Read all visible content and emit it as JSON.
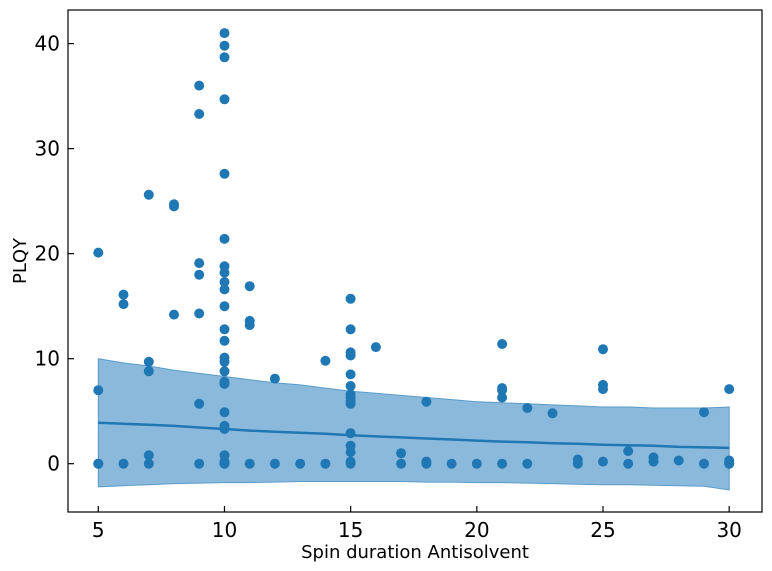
{
  "chart_data": {
    "type": "scatter",
    "title": "",
    "xlabel": "Spin duration Antisolvent",
    "ylabel": "PLQY",
    "xlim": [
      3.8,
      31.3
    ],
    "ylim": [
      -4.6,
      43.2
    ],
    "xticks": [
      5,
      10,
      15,
      20,
      25,
      30
    ],
    "yticks": [
      0,
      10,
      20,
      30,
      40
    ],
    "grid": false,
    "legend": "none",
    "colors": {
      "points": "#1f77b4",
      "fit_line": "#1f77b4",
      "band_fill": "#8bb9dc",
      "band_edge": "#5b9bc9"
    },
    "series": [
      {
        "type": "scatter",
        "points": [
          [
            5,
            20.1
          ],
          [
            5,
            7.0
          ],
          [
            5,
            0.0
          ],
          [
            5,
            0.0
          ],
          [
            6,
            16.1
          ],
          [
            6,
            15.2
          ],
          [
            6,
            0.0
          ],
          [
            7,
            25.6
          ],
          [
            7,
            9.7
          ],
          [
            7,
            8.8
          ],
          [
            7,
            0.8
          ],
          [
            7,
            0.0
          ],
          [
            8,
            24.7
          ],
          [
            8,
            24.5
          ],
          [
            8,
            14.2
          ],
          [
            9,
            36.0
          ],
          [
            9,
            33.3
          ],
          [
            9,
            19.1
          ],
          [
            9,
            18.0
          ],
          [
            9,
            14.3
          ],
          [
            9,
            5.7
          ],
          [
            9,
            0.0
          ],
          [
            10,
            41.0
          ],
          [
            10,
            39.8
          ],
          [
            10,
            38.7
          ],
          [
            10,
            34.7
          ],
          [
            10,
            27.6
          ],
          [
            10,
            21.4
          ],
          [
            10,
            18.8
          ],
          [
            10,
            18.2
          ],
          [
            10,
            17.3
          ],
          [
            10,
            16.6
          ],
          [
            10,
            15.0
          ],
          [
            10,
            12.8
          ],
          [
            10,
            11.7
          ],
          [
            10,
            10.1
          ],
          [
            10,
            9.7
          ],
          [
            10,
            8.8
          ],
          [
            10,
            7.8
          ],
          [
            10,
            7.6
          ],
          [
            10,
            4.9
          ],
          [
            10,
            3.6
          ],
          [
            10,
            3.3
          ],
          [
            10,
            0.8
          ],
          [
            10,
            0.2
          ],
          [
            10,
            0.0
          ],
          [
            10,
            0.0
          ],
          [
            11,
            16.9
          ],
          [
            11,
            13.6
          ],
          [
            11,
            13.2
          ],
          [
            11,
            0.0
          ],
          [
            12,
            8.1
          ],
          [
            12,
            0.0
          ],
          [
            13,
            0.0
          ],
          [
            14,
            9.8
          ],
          [
            14,
            0.0
          ],
          [
            15,
            15.7
          ],
          [
            15,
            12.8
          ],
          [
            15,
            10.6
          ],
          [
            15,
            10.3
          ],
          [
            15,
            8.5
          ],
          [
            15,
            7.4
          ],
          [
            15,
            6.6
          ],
          [
            15,
            6.3
          ],
          [
            15,
            6.0
          ],
          [
            15,
            5.7
          ],
          [
            15,
            2.9
          ],
          [
            15,
            1.7
          ],
          [
            15,
            1.1
          ],
          [
            15,
            0.2
          ],
          [
            15,
            0.0
          ],
          [
            16,
            11.1
          ],
          [
            17,
            1.0
          ],
          [
            17,
            0.0
          ],
          [
            18,
            5.9
          ],
          [
            18,
            0.2
          ],
          [
            18,
            0.0
          ],
          [
            19,
            0.0
          ],
          [
            20,
            0.0
          ],
          [
            21,
            11.4
          ],
          [
            21,
            7.2
          ],
          [
            21,
            7.0
          ],
          [
            21,
            6.3
          ],
          [
            21,
            0.0
          ],
          [
            22,
            5.3
          ],
          [
            22,
            0.0
          ],
          [
            23,
            4.8
          ],
          [
            24,
            0.4
          ],
          [
            24,
            0.0
          ],
          [
            25,
            10.9
          ],
          [
            25,
            7.5
          ],
          [
            25,
            7.1
          ],
          [
            25,
            0.2
          ],
          [
            26,
            1.2
          ],
          [
            26,
            0.0
          ],
          [
            27,
            0.6
          ],
          [
            27,
            0.2
          ],
          [
            28,
            0.3
          ],
          [
            29,
            4.9
          ],
          [
            29,
            0.0
          ],
          [
            30,
            7.1
          ],
          [
            30,
            0.3
          ],
          [
            30,
            0.1
          ],
          [
            30,
            0.0
          ],
          [
            30,
            0.0
          ]
        ]
      },
      {
        "type": "line",
        "x": [
          5,
          6,
          7,
          8,
          9,
          10,
          11,
          12,
          13,
          14,
          15,
          16,
          17,
          18,
          19,
          20,
          21,
          22,
          23,
          24,
          25,
          26,
          27,
          28,
          29,
          30
        ],
        "y": [
          3.9,
          3.8,
          3.7,
          3.6,
          3.45,
          3.3,
          3.15,
          3.05,
          2.95,
          2.85,
          2.7,
          2.6,
          2.5,
          2.4,
          2.3,
          2.2,
          2.1,
          2.05,
          1.95,
          1.9,
          1.8,
          1.75,
          1.7,
          1.6,
          1.55,
          1.5
        ]
      },
      {
        "type": "area",
        "x": [
          5,
          6,
          7,
          8,
          9,
          10,
          11,
          12,
          13,
          14,
          15,
          16,
          17,
          18,
          19,
          20,
          21,
          22,
          23,
          24,
          25,
          26,
          27,
          28,
          29,
          30
        ],
        "upper": [
          10.0,
          9.6,
          9.3,
          8.9,
          8.6,
          8.3,
          8.0,
          7.7,
          7.5,
          7.2,
          6.9,
          6.7,
          6.5,
          6.3,
          6.1,
          5.9,
          5.8,
          5.7,
          5.6,
          5.5,
          5.4,
          5.4,
          5.3,
          5.3,
          5.3,
          5.4
        ],
        "lower": [
          -2.2,
          -2.1,
          -2.0,
          -1.9,
          -1.85,
          -1.8,
          -1.8,
          -1.75,
          -1.7,
          -1.7,
          -1.7,
          -1.7,
          -1.7,
          -1.75,
          -1.75,
          -1.8,
          -1.8,
          -1.85,
          -1.9,
          -1.95,
          -2.0,
          -2.0,
          -2.05,
          -2.1,
          -2.15,
          -2.5
        ]
      }
    ]
  }
}
